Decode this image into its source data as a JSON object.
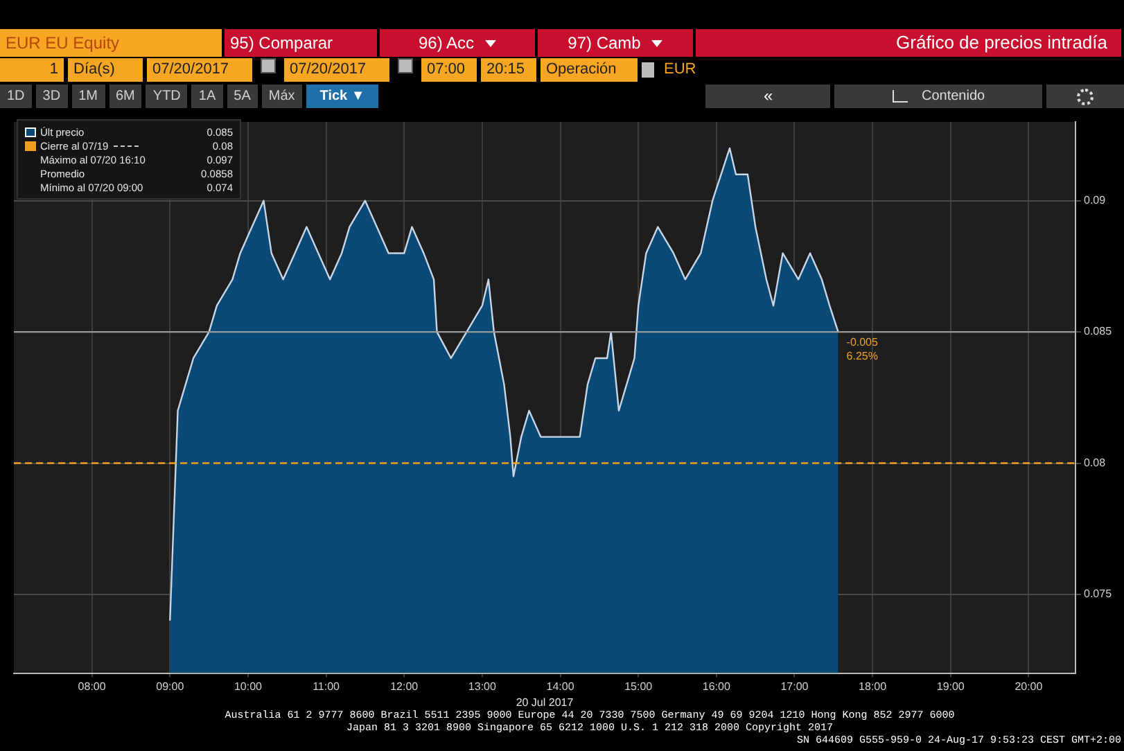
{
  "chart_data": {
    "type": "area",
    "title": "Gráfico de precios intradía",
    "xlabel": "20 Jul 2017",
    "x": [
      9.0,
      9.05,
      9.1,
      9.2,
      9.3,
      9.5,
      9.6,
      9.8,
      9.9,
      10.05,
      10.2,
      10.3,
      10.45,
      10.6,
      10.75,
      10.9,
      11.05,
      11.2,
      11.3,
      11.5,
      11.65,
      11.8,
      12.0,
      12.1,
      12.25,
      12.38,
      12.42,
      12.6,
      12.8,
      13.0,
      13.08,
      13.15,
      13.28,
      13.36,
      13.4,
      13.5,
      13.6,
      13.75,
      14.0,
      14.25,
      14.35,
      14.45,
      14.6,
      14.65,
      14.75,
      14.85,
      14.95,
      15.0,
      15.1,
      15.25,
      15.45,
      15.6,
      15.8,
      15.95,
      16.17,
      16.25,
      16.4,
      16.5,
      16.64,
      16.73,
      16.85,
      17.05,
      17.2,
      17.35,
      17.45,
      17.56
    ],
    "series": [
      {
        "name": "Últ precio",
        "color": "#0b4a77",
        "values": [
          0.074,
          0.078,
          0.082,
          0.083,
          0.084,
          0.085,
          0.086,
          0.087,
          0.088,
          0.089,
          0.09,
          0.088,
          0.087,
          0.088,
          0.089,
          0.088,
          0.087,
          0.088,
          0.089,
          0.09,
          0.089,
          0.088,
          0.088,
          0.089,
          0.088,
          0.087,
          0.085,
          0.084,
          0.085,
          0.086,
          0.087,
          0.085,
          0.083,
          0.081,
          0.0795,
          0.081,
          0.082,
          0.081,
          0.081,
          0.081,
          0.083,
          0.084,
          0.084,
          0.085,
          0.082,
          0.083,
          0.084,
          0.086,
          0.088,
          0.089,
          0.088,
          0.087,
          0.088,
          0.09,
          0.092,
          0.091,
          0.091,
          0.089,
          0.087,
          0.086,
          0.088,
          0.087,
          0.088,
          0.087,
          0.086,
          0.085
        ]
      }
    ],
    "xlim": [
      7,
      20.6
    ],
    "xticks": [
      {
        "value": 8,
        "label": "08:00"
      },
      {
        "value": 9,
        "label": "09:00"
      },
      {
        "value": 10,
        "label": "10:00"
      },
      {
        "value": 11,
        "label": "11:00"
      },
      {
        "value": 12,
        "label": "12:00"
      },
      {
        "value": 13,
        "label": "13:00"
      },
      {
        "value": 14,
        "label": "14:00"
      },
      {
        "value": 15,
        "label": "15:00"
      },
      {
        "value": 16,
        "label": "16:00"
      },
      {
        "value": 17,
        "label": "17:00"
      },
      {
        "value": 18,
        "label": "18:00"
      },
      {
        "value": 19,
        "label": "19:00"
      },
      {
        "value": 20,
        "label": "20:00"
      }
    ],
    "ylim": [
      0.072,
      0.093
    ],
    "yticks": [
      0.075,
      0.08,
      0.085,
      0.09
    ],
    "ref_lines": [
      {
        "axis": "y",
        "value": 0.08,
        "label": "Cierre al 07/19",
        "color": "#f0a020",
        "line_style": "dashed"
      },
      {
        "axis": "y",
        "value": 0.085,
        "color": "#9a9a9a"
      }
    ],
    "grid": true,
    "legend": "top left",
    "annotations": [
      "EUR EU Equity",
      "95) Comparar",
      "96) Acc",
      "97) Camb",
      "1",
      "Día(s)",
      "07/20/2017",
      "07/20/2017",
      "07:00",
      "20:15",
      "Operación",
      "EUR",
      "1D",
      "3D",
      "1M",
      "6M",
      "YTD",
      "1A",
      "5A",
      "Máx",
      "Tick ▼",
      "«",
      "Contenido",
      "0.085",
      "0.08",
      "Máximo al 07/20 16:10 0.097",
      "Promedio 0.0858",
      "Mínimo al 07/20 09:00 0.074",
      {
        "text": "-0.005",
        "x": 17.56,
        "y": 0.085
      },
      {
        "text": "6.25%",
        "x": 17.56,
        "y": 0.085
      },
      "Australia 61 2 9777 8600 Brazil 5511 2395 9000 Europe 44 20 7330 7500 Germany 49 69 9204 1210 Hong Kong 852 2977 6000",
      "Japan 81 3 3201 8900 Singapore 65 6212 1000 U.S. 1 212 318 2000 Copyright 2017",
      "SN 644609 G555-959-0 24-Aug-17 9:53:23 CEST GMT+2:00"
    ]
  }
}
